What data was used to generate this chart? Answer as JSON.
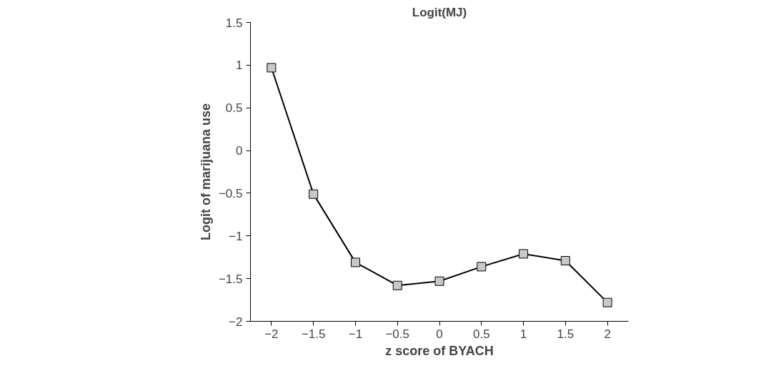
{
  "chart_data": {
    "type": "line",
    "title": "Logit(MJ)",
    "xlabel": "z score of BYACH",
    "ylabel": "Logit of marijuana use",
    "categories": [
      "−2",
      "−1.5",
      "−1",
      "−0.5",
      "0",
      "0.5",
      "1",
      "1.5",
      "2"
    ],
    "series": [
      {
        "color": "#000000",
        "values": [
          0.97,
          -0.51,
          -1.31,
          -1.58,
          -1.53,
          -1.36,
          -1.21,
          -1.29,
          -1.78
        ]
      }
    ],
    "ylim": [
      -2,
      1.5
    ],
    "yticks": [
      {
        "value": -2,
        "label": "−2"
      },
      {
        "value": -1.5,
        "label": "−1.5"
      },
      {
        "value": -1,
        "label": "−1"
      },
      {
        "value": -0.5,
        "label": "−0.5"
      },
      0,
      0.5,
      1,
      1.5
    ],
    "marker": "square",
    "line_style": "solid",
    "grid": false
  }
}
